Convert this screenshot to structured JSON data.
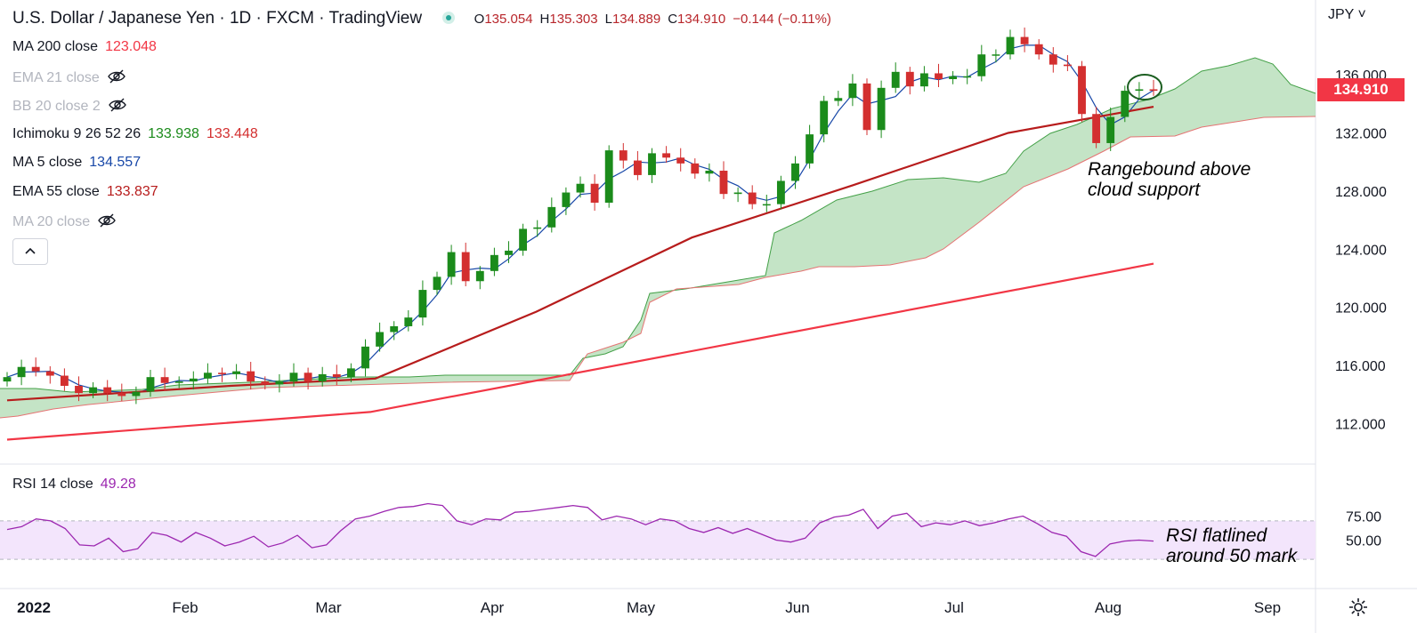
{
  "header": {
    "title": "U.S. Dollar / Japanese Yen · 1D · FXCM · TradingView",
    "ohlc": [
      {
        "label": "O",
        "value": "135.054"
      },
      {
        "label": "H",
        "value": "135.303"
      },
      {
        "label": "L",
        "value": "134.889"
      },
      {
        "label": "C",
        "value": "134.910"
      },
      {
        "label": "",
        "value": "−0.144 (−0.11%)"
      }
    ]
  },
  "indicators": [
    {
      "name": "MA 200 close",
      "values": [
        "123.048"
      ],
      "colors": [
        "#f23645"
      ],
      "visible": true
    },
    {
      "name": "EMA 21 close",
      "values": [],
      "colors": [],
      "visible": false
    },
    {
      "name": "BB 20 close 2",
      "values": [],
      "colors": [],
      "visible": false
    },
    {
      "name": "Ichimoku 9 26 52 26",
      "values": [
        "133.938",
        "133.448"
      ],
      "colors": [
        "#1b8b1b",
        "#d32f2f"
      ],
      "visible": true
    },
    {
      "name": "MA 5 close",
      "values": [
        "134.557"
      ],
      "colors": [
        "#1848a8"
      ],
      "visible": true
    },
    {
      "name": "EMA 55 close",
      "values": [
        "133.837"
      ],
      "colors": [
        "#b71c1c"
      ],
      "visible": true
    },
    {
      "name": "MA 20 close",
      "values": [],
      "colors": [],
      "visible": false
    }
  ],
  "collapse_icon": "chevron-up-icon",
  "price_axis": {
    "currency": "JPY ˅",
    "ticks": [
      "136.000",
      "132.000",
      "128.000",
      "124.000",
      "120.000",
      "116.000",
      "112.000"
    ],
    "last_price": "134.910"
  },
  "rsi": {
    "name": "RSI 14 close",
    "value": "49.28",
    "ticks": [
      "75.00",
      "50.00"
    ]
  },
  "time_axis": {
    "labels": [
      "2022",
      "Feb",
      "Mar",
      "Apr",
      "May",
      "Jun",
      "Jul",
      "Aug",
      "Sep"
    ]
  },
  "annotations": [
    {
      "text": "Rangebound above cloud support"
    },
    {
      "text": "RSI flatlined around 50 mark"
    }
  ],
  "settings_icon": "gear-icon",
  "colors": {
    "up": "#1b8b1b",
    "down": "#d32f2f",
    "ma200": "#f23645",
    "ema55": "#b71c1c",
    "ma5": "#1848a8",
    "cloud": "#a5d6a7",
    "rsi": "#9c27b0",
    "rsi_band": "#f3e5fc"
  },
  "chart_data": [
    {
      "type": "candlestick",
      "title": "U.S. Dollar / Japanese Yen · 1D · FXCM",
      "x_range": [
        "2022-01-03",
        "2022-08-12"
      ],
      "ylim": [
        110.0,
        137.5
      ],
      "yticks": [
        112,
        116,
        120,
        124,
        128,
        132,
        136
      ],
      "points": [
        {
          "date": "2022-01-03",
          "c": 115.2
        },
        {
          "date": "2022-01-05",
          "c": 115.9
        },
        {
          "date": "2022-01-07",
          "c": 115.6
        },
        {
          "date": "2022-01-10",
          "c": 115.3
        },
        {
          "date": "2022-01-12",
          "c": 114.6
        },
        {
          "date": "2022-01-14",
          "c": 114.1
        },
        {
          "date": "2022-01-18",
          "c": 114.5
        },
        {
          "date": "2022-01-20",
          "c": 114.1
        },
        {
          "date": "2022-01-24",
          "c": 113.9
        },
        {
          "date": "2022-01-26",
          "c": 114.2
        },
        {
          "date": "2022-01-28",
          "c": 115.2
        },
        {
          "date": "2022-02-01",
          "c": 114.8
        },
        {
          "date": "2022-02-03",
          "c": 114.9
        },
        {
          "date": "2022-02-07",
          "c": 115.1
        },
        {
          "date": "2022-02-09",
          "c": 115.5
        },
        {
          "date": "2022-02-11",
          "c": 115.4
        },
        {
          "date": "2022-02-15",
          "c": 115.6
        },
        {
          "date": "2022-02-17",
          "c": 114.9
        },
        {
          "date": "2022-02-21",
          "c": 114.7
        },
        {
          "date": "2022-02-23",
          "c": 114.9
        },
        {
          "date": "2022-02-25",
          "c": 115.5
        },
        {
          "date": "2022-03-01",
          "c": 114.9
        },
        {
          "date": "2022-03-03",
          "c": 115.4
        },
        {
          "date": "2022-03-07",
          "c": 115.2
        },
        {
          "date": "2022-03-09",
          "c": 115.8
        },
        {
          "date": "2022-03-11",
          "c": 117.3
        },
        {
          "date": "2022-03-15",
          "c": 118.3
        },
        {
          "date": "2022-03-17",
          "c": 118.7
        },
        {
          "date": "2022-03-21",
          "c": 119.3
        },
        {
          "date": "2022-03-23",
          "c": 121.2
        },
        {
          "date": "2022-03-25",
          "c": 122.1
        },
        {
          "date": "2022-03-28",
          "c": 123.8
        },
        {
          "date": "2022-03-30",
          "c": 121.8
        },
        {
          "date": "2022-04-01",
          "c": 122.5
        },
        {
          "date": "2022-04-05",
          "c": 123.6
        },
        {
          "date": "2022-04-07",
          "c": 123.9
        },
        {
          "date": "2022-04-11",
          "c": 125.4
        },
        {
          "date": "2022-04-13",
          "c": 125.5
        },
        {
          "date": "2022-04-18",
          "c": 126.9
        },
        {
          "date": "2022-04-20",
          "c": 127.9
        },
        {
          "date": "2022-04-22",
          "c": 128.5
        },
        {
          "date": "2022-04-26",
          "c": 127.2
        },
        {
          "date": "2022-04-28",
          "c": 130.8
        },
        {
          "date": "2022-05-02",
          "c": 130.1
        },
        {
          "date": "2022-05-04",
          "c": 129.1
        },
        {
          "date": "2022-05-06",
          "c": 130.6
        },
        {
          "date": "2022-05-09",
          "c": 130.3
        },
        {
          "date": "2022-05-11",
          "c": 129.9
        },
        {
          "date": "2022-05-13",
          "c": 129.2
        },
        {
          "date": "2022-05-17",
          "c": 129.4
        },
        {
          "date": "2022-05-19",
          "c": 127.8
        },
        {
          "date": "2022-05-23",
          "c": 127.9
        },
        {
          "date": "2022-05-25",
          "c": 127.1
        },
        {
          "date": "2022-05-27",
          "c": 127.1
        },
        {
          "date": "2022-05-31",
          "c": 128.7
        },
        {
          "date": "2022-06-02",
          "c": 129.9
        },
        {
          "date": "2022-06-06",
          "c": 131.9
        },
        {
          "date": "2022-06-08",
          "c": 134.2
        },
        {
          "date": "2022-06-10",
          "c": 134.4
        },
        {
          "date": "2022-06-14",
          "c": 135.4
        },
        {
          "date": "2022-06-16",
          "c": 132.2
        },
        {
          "date": "2022-06-20",
          "c": 135.1
        },
        {
          "date": "2022-06-22",
          "c": 136.2
        },
        {
          "date": "2022-06-24",
          "c": 135.2
        },
        {
          "date": "2022-06-28",
          "c": 136.1
        },
        {
          "date": "2022-06-30",
          "c": 135.7
        },
        {
          "date": "2022-07-05",
          "c": 135.9
        },
        {
          "date": "2022-07-07",
          "c": 135.9
        },
        {
          "date": "2022-07-11",
          "c": 137.4
        },
        {
          "date": "2022-07-13",
          "c": 137.4
        },
        {
          "date": "2022-07-15",
          "c": 138.6
        },
        {
          "date": "2022-07-19",
          "c": 138.1
        },
        {
          "date": "2022-07-21",
          "c": 137.4
        },
        {
          "date": "2022-07-25",
          "c": 136.7
        },
        {
          "date": "2022-07-27",
          "c": 136.6
        },
        {
          "date": "2022-07-29",
          "c": 133.3
        },
        {
          "date": "2022-08-02",
          "c": 131.3
        },
        {
          "date": "2022-08-04",
          "c": 133.1
        },
        {
          "date": "2022-08-08",
          "c": 134.9
        },
        {
          "date": "2022-08-10",
          "c": 135.0
        },
        {
          "date": "2022-08-12",
          "c": 134.9
        }
      ],
      "series": [
        {
          "name": "MA 200 close",
          "x": [
            "2022-01-03",
            "2022-03-14",
            "2022-08-12"
          ],
          "values": [
            110.9,
            112.8,
            123.0
          ]
        },
        {
          "name": "EMA 55 close",
          "x": [
            "2022-01-03",
            "2022-02-15",
            "2022-03-15",
            "2022-04-15",
            "2022-05-15",
            "2022-06-15",
            "2022-07-15",
            "2022-08-12"
          ],
          "values": [
            113.6,
            114.6,
            115.1,
            119.7,
            124.8,
            128.4,
            132.0,
            133.8
          ]
        }
      ],
      "last_price": 134.91
    },
    {
      "type": "line",
      "title": "RSI 14 close",
      "ylim": [
        30,
        90
      ],
      "yticks": [
        50,
        75
      ],
      "band": [
        30,
        70
      ],
      "series": [
        {
          "name": "RSI 14 close",
          "values": [
            61,
            64,
            72,
            70,
            62,
            45,
            44,
            52,
            38,
            41,
            58,
            55,
            48,
            58,
            52,
            44,
            48,
            54,
            43,
            47,
            55,
            42,
            45,
            60,
            72,
            75,
            80,
            84,
            85,
            88,
            86,
            70,
            66,
            72,
            71,
            79,
            80,
            82,
            84,
            86,
            84,
            71,
            75,
            72,
            66,
            72,
            70,
            62,
            58,
            63,
            57,
            62,
            56,
            50,
            48,
            52,
            68,
            74,
            76,
            82,
            62,
            75,
            78,
            64,
            68,
            66,
            70,
            65,
            68,
            72,
            75,
            67,
            58,
            54,
            38,
            33,
            46,
            49,
            50,
            49
          ]
        }
      ],
      "last_value": 49.28
    }
  ]
}
